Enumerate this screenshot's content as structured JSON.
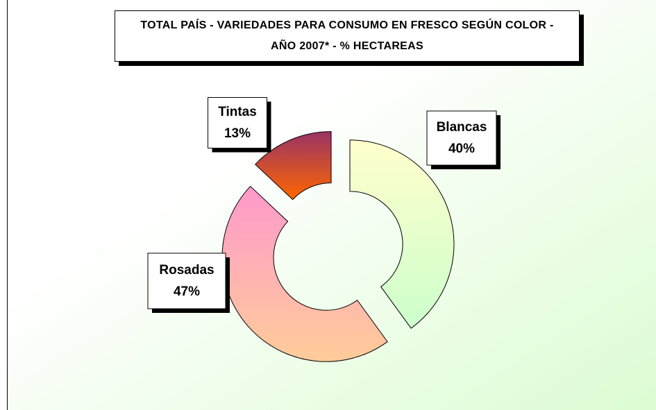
{
  "chart_data": {
    "type": "donut",
    "title": "TOTAL PAÍS - VARIEDADES PARA CONSUMO EN FRESCO SEGÚN COLOR - AÑO 2007* - % HECTAREAS",
    "categories": [
      "Blancas",
      "Rosadas",
      "Tintas"
    ],
    "values": [
      40,
      47,
      13
    ],
    "value_labels": [
      "40%",
      "47%",
      "13%"
    ],
    "colors": [
      [
        "#ffffcc",
        "#ccffcc"
      ],
      [
        "#ff99cc",
        "#ffcc99"
      ],
      [
        "#993366",
        "#ff6600"
      ]
    ],
    "exploded": true
  }
}
